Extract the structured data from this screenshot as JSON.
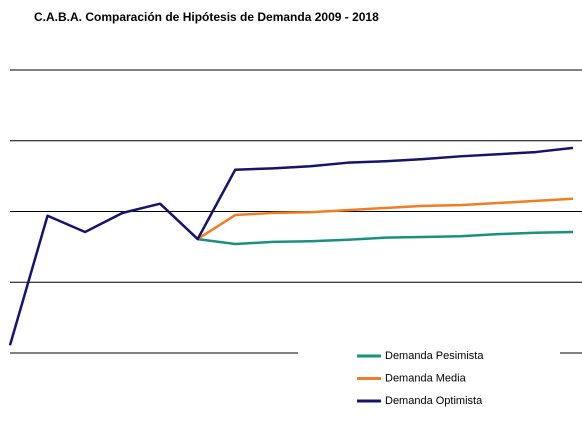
{
  "chart_data": {
    "type": "line",
    "title": "C.A.B.A. Comparación de Hipótesis de Demanda 2009 - 2018",
    "categories": [
      null,
      null,
      null,
      null,
      null,
      null,
      null,
      null,
      null,
      null,
      null,
      null,
      null,
      null,
      null,
      null
    ],
    "series": [
      {
        "name": "Demanda Pesimista",
        "color": "#1a9080",
        "values": [
          null,
          null,
          null,
          null,
          null,
          1.61,
          1.54,
          1.57,
          1.58,
          1.6,
          1.63,
          1.64,
          1.65,
          1.68,
          1.7,
          1.71
        ]
      },
      {
        "name": "Demanda Media",
        "color": "#f47c20",
        "values": [
          null,
          null,
          null,
          null,
          null,
          1.61,
          1.95,
          1.98,
          1.99,
          2.02,
          2.05,
          2.08,
          2.09,
          2.12,
          2.15,
          2.18
        ]
      },
      {
        "name": "Demanda Optimista",
        "color": "#14146e",
        "values": [
          0.11,
          1.94,
          1.71,
          1.98,
          2.11,
          1.61,
          2.59,
          2.61,
          2.64,
          2.69,
          2.71,
          2.74,
          2.78,
          2.81,
          2.84,
          2.9
        ]
      }
    ],
    "ylim": [
      0,
      4
    ],
    "yticks": [
      0,
      1,
      2,
      3,
      4
    ],
    "grid": true,
    "legend": "lower right"
  }
}
